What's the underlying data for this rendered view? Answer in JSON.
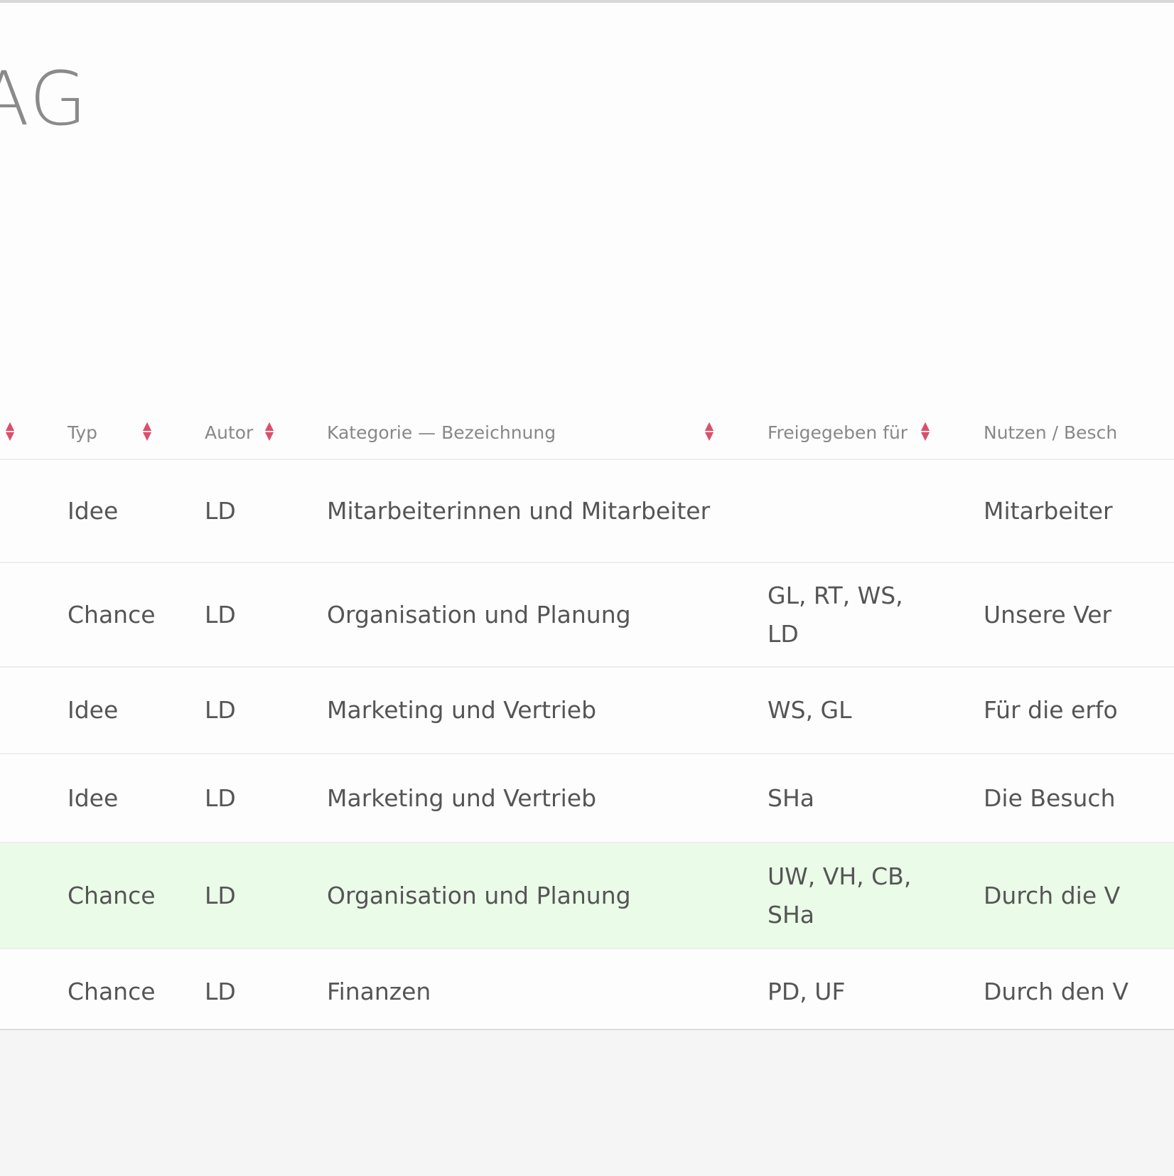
{
  "page": {
    "title": "AG"
  },
  "table": {
    "columns": [
      "Typ",
      "Autor",
      "Kategorie — Bezeichnung",
      "Freigegeben für",
      "Nutzen / Besch"
    ],
    "rows": [
      {
        "typ": "Idee",
        "autor": "LD",
        "kategorie": "Mitarbeiterinnen und Mitarbeiter",
        "freigegeben": "",
        "nutzen": "Mitarbeiter",
        "highlighted": false
      },
      {
        "typ": "Chance",
        "autor": "LD",
        "kategorie": "Organisation und Planung",
        "freigegeben": "GL, RT, WS, LD",
        "nutzen": "Unsere Ver",
        "highlighted": false
      },
      {
        "typ": "Idee",
        "autor": "LD",
        "kategorie": "Marketing und Vertrieb",
        "freigegeben": "WS, GL",
        "nutzen": "Für die erfo",
        "highlighted": false
      },
      {
        "typ": "Idee",
        "autor": "LD",
        "kategorie": "Marketing und Vertrieb",
        "freigegeben": "SHa",
        "nutzen": "Die Besuch",
        "highlighted": false
      },
      {
        "typ": "Chance",
        "autor": "LD",
        "kategorie": "Organisation und Planung",
        "freigegeben": "UW, VH, CB, SHa",
        "nutzen": "Durch die V",
        "highlighted": true
      },
      {
        "typ": "Chance",
        "autor": "LD",
        "kategorie": "Finanzen",
        "freigegeben": "PD, UF",
        "nutzen": "Durch den V",
        "highlighted": false
      }
    ]
  },
  "colors": {
    "sort_icon": "#d9506a",
    "highlight_row": "#eafbe8"
  }
}
